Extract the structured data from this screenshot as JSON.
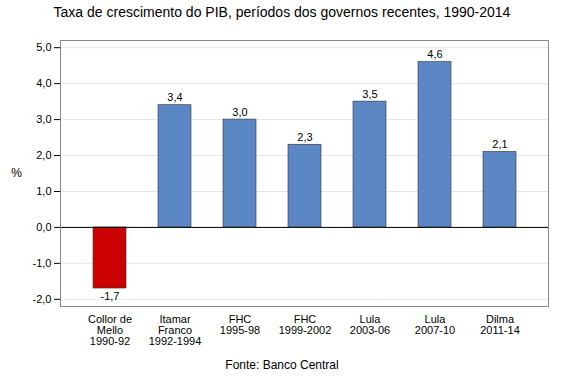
{
  "chart_data": {
    "type": "bar",
    "title": "Taxa de crescimento do PIB, períodos dos governos recentes, 1990-2014",
    "source": "Fonte: Banco Central",
    "ylabel": "%",
    "categories": [
      "Collor de\nMello\n1990-92",
      "Itamar\nFranco\n1992-1994",
      "FHC\n1995-98",
      "FHC\n1999-2002",
      "Lula\n2003-06",
      "Lula\n2007-10",
      "Dilma\n2011-14"
    ],
    "values": [
      -1.7,
      3.4,
      3.0,
      2.3,
      3.5,
      4.6,
      2.1
    ],
    "value_labels": [
      "-1,7",
      "3,4",
      "3,0",
      "2,3",
      "3,5",
      "4,6",
      "2,1"
    ],
    "colors": [
      "#cc0000",
      "#5b87c5",
      "#5b87c5",
      "#5b87c5",
      "#5b87c5",
      "#5b87c5",
      "#5b87c5"
    ],
    "ylim": [
      -2.2,
      5.2
    ],
    "yticks": [
      {
        "value": -2.0,
        "label": "-2,0"
      },
      {
        "value": -1.0,
        "label": "-1,0"
      },
      {
        "value": 0.0,
        "label": "0,0"
      },
      {
        "value": 1.0,
        "label": "1,0"
      },
      {
        "value": 2.0,
        "label": "2,0"
      },
      {
        "value": 3.0,
        "label": "3,0"
      },
      {
        "value": 4.0,
        "label": "4,0"
      },
      {
        "value": 5.0,
        "label": "5,0"
      }
    ],
    "grid": true,
    "data_labels": true
  }
}
